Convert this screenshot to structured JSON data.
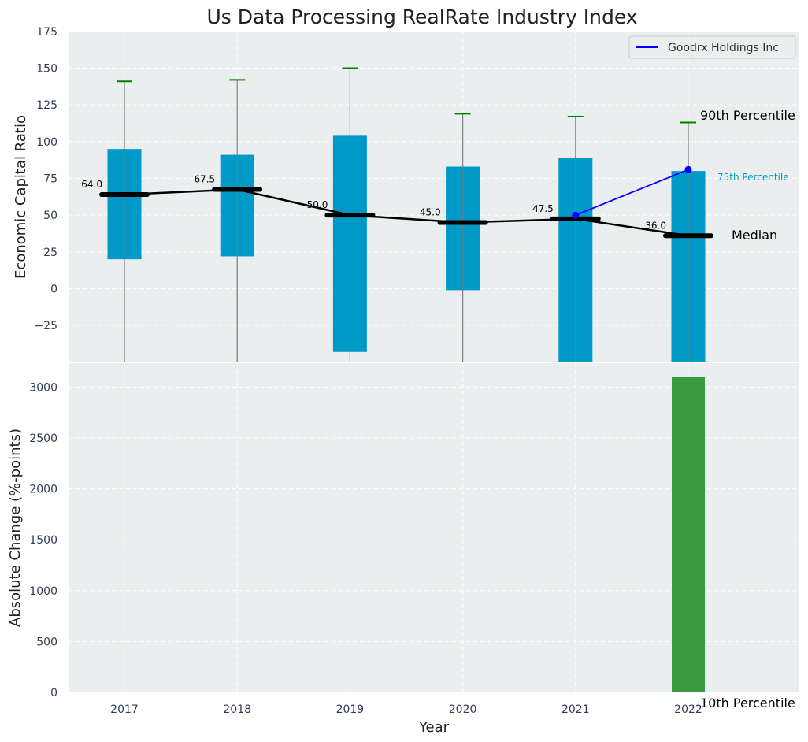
{
  "chart_data": {
    "title": "Us Data Processing RealRate Industry Index",
    "xlabel": "Year",
    "colors": {
      "panel_bg": "#eaeeee",
      "box": "#009ac9",
      "median": "#000000",
      "whisker": "#808080",
      "cap": "#008000",
      "company": "#0000ff",
      "bar": "#3a9a3e",
      "grid": "#ffffff",
      "tick_text": "#2e3e55"
    },
    "top": {
      "type": "box",
      "ylabel": "Economic Capital Ratio",
      "ylim": [
        -50,
        175
      ],
      "yticks": [
        "175",
        "150",
        "125",
        "100",
        "75",
        "50",
        "25",
        "0",
        "−25"
      ],
      "ytick_values": [
        175,
        150,
        125,
        100,
        75,
        50,
        25,
        0,
        -25
      ],
      "categories": [
        "2017",
        "2018",
        "2019",
        "2020",
        "2021",
        "2022"
      ],
      "p10": [
        -60,
        -60,
        -60,
        -60,
        -60,
        -60
      ],
      "p25": [
        20,
        22,
        -43,
        -1,
        -55,
        -55
      ],
      "median": [
        64.0,
        67.5,
        50.0,
        45.0,
        47.5,
        36.0
      ],
      "median_labels": [
        "64.0",
        "67.5",
        "50.0",
        "45.0",
        "47.5",
        "36.0"
      ],
      "p75": [
        95,
        91,
        104,
        83,
        89,
        80
      ],
      "p90": [
        141,
        142,
        150,
        119,
        117,
        113
      ],
      "company_series": {
        "name": "Goodrx Holdings Inc",
        "x": [
          "2021",
          "2022"
        ],
        "values": [
          50,
          81
        ]
      },
      "annotations": {
        "p90": "90th Percentile",
        "p75": "75th Percentile",
        "median": "Median",
        "p10": "10th Percentile"
      },
      "legend_position": "top-right",
      "grid": true
    },
    "bottom": {
      "type": "bar",
      "ylabel": "Absolute Change (%-points)",
      "ylim": [
        0,
        3250
      ],
      "yticks": [
        "3000",
        "2500",
        "2000",
        "1500",
        "1000",
        "500",
        "0"
      ],
      "ytick_values": [
        3000,
        2500,
        2000,
        1500,
        1000,
        500,
        0
      ],
      "categories": [
        "2017",
        "2018",
        "2019",
        "2020",
        "2021",
        "2022"
      ],
      "values": [
        0,
        0,
        0,
        0,
        0,
        3100
      ],
      "grid": true
    }
  }
}
